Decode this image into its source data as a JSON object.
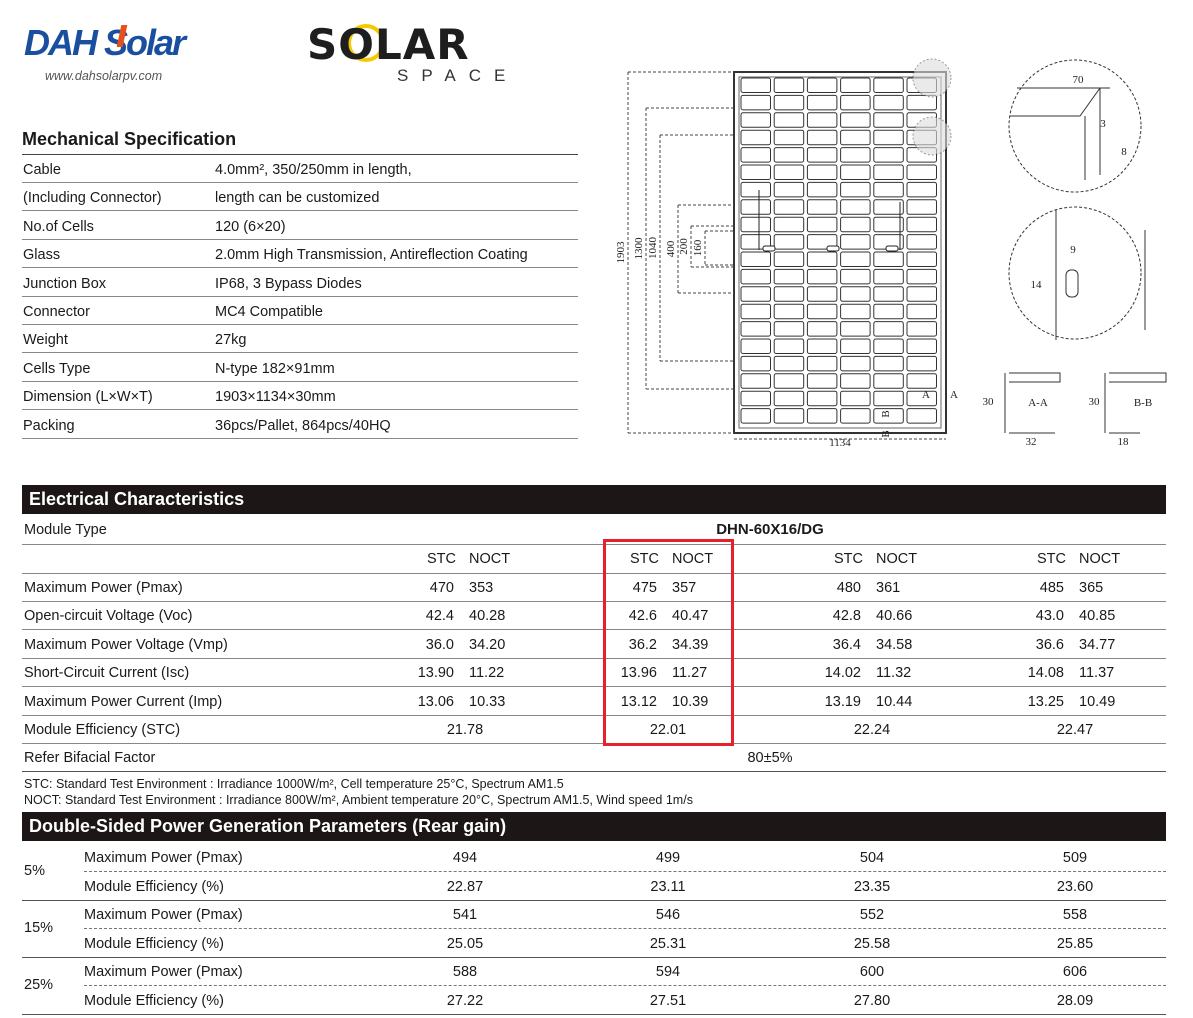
{
  "brand": {
    "dah_logo": "DAH Solar",
    "website": "www.dahsolarpv.com",
    "series_logo_main": "SOLAR",
    "series_logo_sub": "SPACE",
    "colors": {
      "dah_blue": "#1a4fa0",
      "dah_orange": "#e8501a",
      "solar_yellow": "#f5c800"
    }
  },
  "mechanical": {
    "title": "Mechanical Specification",
    "rows": [
      {
        "label": "Cable",
        "value": "4.0mm², 350/250mm in length,"
      },
      {
        "label": "(Including Connector)",
        "value": "length can be customized"
      },
      {
        "label": "No.of Cells",
        "value": "120 (6×20)"
      },
      {
        "label": "Glass",
        "value": "2.0mm High Transmission, Antireflection Coating"
      },
      {
        "label": "Junction Box",
        "value": "IP68, 3 Bypass Diodes"
      },
      {
        "label": "Connector",
        "value": "MC4 Compatible"
      },
      {
        "label": "Weight",
        "value": "27kg"
      },
      {
        "label": "Cells Type",
        "value": "N-type 182×91mm"
      },
      {
        "label": "Dimension (L×W×T)",
        "value": "1903×1134×30mm"
      },
      {
        "label": "Packing",
        "value": "36pcs/Pallet, 864pcs/40HQ"
      }
    ]
  },
  "drawing": {
    "dims": {
      "length": "1903",
      "d1300": "1300",
      "d1040": "1040",
      "d400": "400",
      "d200": "200",
      "d160": "160",
      "width": "1134",
      "d70": "70",
      "d3": "3",
      "d8": "8",
      "d9": "9",
      "d14": "14",
      "aa_h": "30",
      "aa_w": "32",
      "bb_h": "30",
      "bb_w": "18",
      "aa_label": "A-A",
      "bb_label": "B-B",
      "a": "A",
      "b": "B"
    }
  },
  "electrical": {
    "title": "Electrical Characteristics",
    "module_type_label": "Module Type",
    "module_type": "DHN-60X16/DG",
    "stc": "STC",
    "noct": "NOCT",
    "rows": [
      {
        "label": "Maximum Power (Pmax)",
        "vals": [
          [
            "470",
            "353"
          ],
          [
            "475",
            "357"
          ],
          [
            "480",
            "361"
          ],
          [
            "485",
            "365"
          ]
        ]
      },
      {
        "label": "Open-circuit Voltage (Voc)",
        "vals": [
          [
            "42.4",
            "40.28"
          ],
          [
            "42.6",
            "40.47"
          ],
          [
            "42.8",
            "40.66"
          ],
          [
            "43.0",
            "40.85"
          ]
        ]
      },
      {
        "label": "Maximum Power Voltage (Vmp)",
        "vals": [
          [
            "36.0",
            "34.20"
          ],
          [
            "36.2",
            "34.39"
          ],
          [
            "36.4",
            "34.58"
          ],
          [
            "36.6",
            "34.77"
          ]
        ]
      },
      {
        "label": "Short-Circuit Current (Isc)",
        "vals": [
          [
            "13.90",
            "11.22"
          ],
          [
            "13.96",
            "11.27"
          ],
          [
            "14.02",
            "11.32"
          ],
          [
            "14.08",
            "11.37"
          ]
        ]
      },
      {
        "label": "Maximum Power Current (Imp)",
        "vals": [
          [
            "13.06",
            "10.33"
          ],
          [
            "13.12",
            "10.39"
          ],
          [
            "13.19",
            "10.44"
          ],
          [
            "13.25",
            "10.49"
          ]
        ]
      }
    ],
    "efficiency": {
      "label": "Module Efficiency (STC)",
      "vals": [
        "21.78",
        "22.01",
        "22.24",
        "22.47"
      ]
    },
    "bifacial": {
      "label": "Refer Bifacial Factor",
      "value": "80±5%"
    },
    "highlight_color": "#e8202a",
    "notes": [
      "STC: Standard Test Environment : Irradiance 1000W/m², Cell temperature 25°C, Spectrum AM1.5",
      "NOCT: Standard Test Environment : Irradiance 800W/m², Ambient temperature 20°C, Spectrum AM1.5, Wind speed 1m/s"
    ]
  },
  "double_sided": {
    "title": "Double-Sided Power Generation Parameters (Rear gain)",
    "groups": [
      {
        "gain": "5%",
        "rows": [
          {
            "label": "Maximum Power (Pmax)",
            "vals": [
              "494",
              "499",
              "504",
              "509"
            ]
          },
          {
            "label": "Module Efficiency (%)",
            "vals": [
              "22.87",
              "23.11",
              "23.35",
              "23.60"
            ]
          }
        ]
      },
      {
        "gain": "15%",
        "rows": [
          {
            "label": "Maximum Power (Pmax)",
            "vals": [
              "541",
              "546",
              "552",
              "558"
            ]
          },
          {
            "label": "Module Efficiency (%)",
            "vals": [
              "25.05",
              "25.31",
              "25.58",
              "25.85"
            ]
          }
        ]
      },
      {
        "gain": "25%",
        "rows": [
          {
            "label": "Maximum Power (Pmax)",
            "vals": [
              "588",
              "594",
              "600",
              "606"
            ]
          },
          {
            "label": "Module Efficiency (%)",
            "vals": [
              "27.22",
              "27.51",
              "27.80",
              "28.09"
            ]
          }
        ]
      }
    ]
  }
}
